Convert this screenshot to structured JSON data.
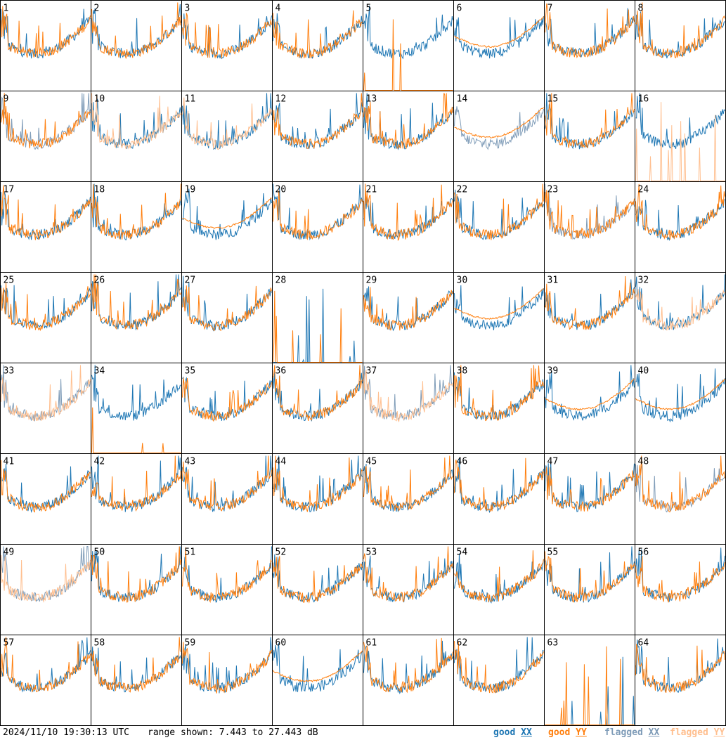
{
  "footer": {
    "timestamp": "2024/11/10 19:30:13 UTC",
    "range_text": "range shown: 7.443 to 27.443 dB"
  },
  "legend": [
    {
      "label": "good",
      "pol": "XX",
      "color": "#1f77b4"
    },
    {
      "label": "good",
      "pol": "YY",
      "color": "#ff7f0e"
    },
    {
      "label": "flagged",
      "pol": "XX",
      "color": "#7f9cb8"
    },
    {
      "label": "flagged",
      "pol": "YY",
      "color": "#ffbf8f"
    }
  ],
  "chart_data": {
    "type": "line",
    "layout": "8x8 small multiples",
    "ylim": [
      7.443,
      27.443
    ],
    "y_units": "dB",
    "panels": [
      {
        "label": "1",
        "xx": "good",
        "yy": "good"
      },
      {
        "label": "2",
        "xx": "good",
        "yy": "good"
      },
      {
        "label": "3",
        "xx": "good",
        "yy": "good"
      },
      {
        "label": "4",
        "xx": "good",
        "yy": "good"
      },
      {
        "label": "5",
        "xx": "good",
        "yy": "good"
      },
      {
        "label": "6",
        "xx": "good",
        "yy": "good"
      },
      {
        "label": "7",
        "xx": "good",
        "yy": "good"
      },
      {
        "label": "8",
        "xx": "good",
        "yy": "good"
      },
      {
        "label": "9",
        "xx": "flagged",
        "yy": "good"
      },
      {
        "label": "10",
        "xx": "good",
        "yy": "flagged"
      },
      {
        "label": "11",
        "xx": "good",
        "yy": "flagged"
      },
      {
        "label": "12",
        "xx": "good",
        "yy": "good"
      },
      {
        "label": "13",
        "xx": "good",
        "yy": "good"
      },
      {
        "label": "14",
        "xx": "flagged",
        "yy": "good"
      },
      {
        "label": "15",
        "xx": "good",
        "yy": "good"
      },
      {
        "label": "16",
        "xx": "good",
        "yy": "flagged"
      },
      {
        "label": "17",
        "xx": "good",
        "yy": "good"
      },
      {
        "label": "18",
        "xx": "good",
        "yy": "good"
      },
      {
        "label": "19",
        "xx": "good",
        "yy": "good"
      },
      {
        "label": "20",
        "xx": "good",
        "yy": "good"
      },
      {
        "label": "21",
        "xx": "good",
        "yy": "good"
      },
      {
        "label": "22",
        "xx": "good",
        "yy": "good"
      },
      {
        "label": "23",
        "xx": "flagged",
        "yy": "good"
      },
      {
        "label": "24",
        "xx": "good",
        "yy": "good"
      },
      {
        "label": "25",
        "xx": "good",
        "yy": "good"
      },
      {
        "label": "26",
        "xx": "good",
        "yy": "good"
      },
      {
        "label": "27",
        "xx": "good",
        "yy": "good"
      },
      {
        "label": "28",
        "xx": "good",
        "yy": "good"
      },
      {
        "label": "29",
        "xx": "good",
        "yy": "good"
      },
      {
        "label": "30",
        "xx": "good",
        "yy": "good"
      },
      {
        "label": "31",
        "xx": "good",
        "yy": "good"
      },
      {
        "label": "32",
        "xx": "good",
        "yy": "flagged"
      },
      {
        "label": "33",
        "xx": "flagged",
        "yy": "flagged"
      },
      {
        "label": "34",
        "xx": "good",
        "yy": "good"
      },
      {
        "label": "35",
        "xx": "good",
        "yy": "good"
      },
      {
        "label": "36",
        "xx": "good",
        "yy": "good"
      },
      {
        "label": "37",
        "xx": "flagged",
        "yy": "flagged"
      },
      {
        "label": "38",
        "xx": "good",
        "yy": "good"
      },
      {
        "label": "39",
        "xx": "good",
        "yy": "good"
      },
      {
        "label": "40",
        "xx": "good",
        "yy": "good"
      },
      {
        "label": "41",
        "xx": "good",
        "yy": "good"
      },
      {
        "label": "42",
        "xx": "good",
        "yy": "good"
      },
      {
        "label": "43",
        "xx": "good",
        "yy": "good"
      },
      {
        "label": "44",
        "xx": "good",
        "yy": "good"
      },
      {
        "label": "45",
        "xx": "good",
        "yy": "good"
      },
      {
        "label": "46",
        "xx": "good",
        "yy": "good"
      },
      {
        "label": "47",
        "xx": "good",
        "yy": "good"
      },
      {
        "label": "48",
        "xx": "flagged",
        "yy": "good"
      },
      {
        "label": "49",
        "xx": "flagged",
        "yy": "flagged"
      },
      {
        "label": "50",
        "xx": "good",
        "yy": "good"
      },
      {
        "label": "51",
        "xx": "good",
        "yy": "good"
      },
      {
        "label": "52",
        "xx": "good",
        "yy": "good"
      },
      {
        "label": "53",
        "xx": "good",
        "yy": "good"
      },
      {
        "label": "54",
        "xx": "good",
        "yy": "good"
      },
      {
        "label": "55",
        "xx": "good",
        "yy": "good"
      },
      {
        "label": "56",
        "xx": "good",
        "yy": "good"
      },
      {
        "label": "57",
        "xx": "good",
        "yy": "good"
      },
      {
        "label": "58",
        "xx": "good",
        "yy": "good"
      },
      {
        "label": "59",
        "xx": "good",
        "yy": "good"
      },
      {
        "label": "60",
        "xx": "good",
        "yy": "good"
      },
      {
        "label": "61",
        "xx": "good",
        "yy": "good"
      },
      {
        "label": "62",
        "xx": "good",
        "yy": "good"
      },
      {
        "label": "63",
        "xx": "good",
        "yy": "good"
      },
      {
        "label": "64",
        "xx": "good",
        "yy": "good"
      }
    ]
  }
}
